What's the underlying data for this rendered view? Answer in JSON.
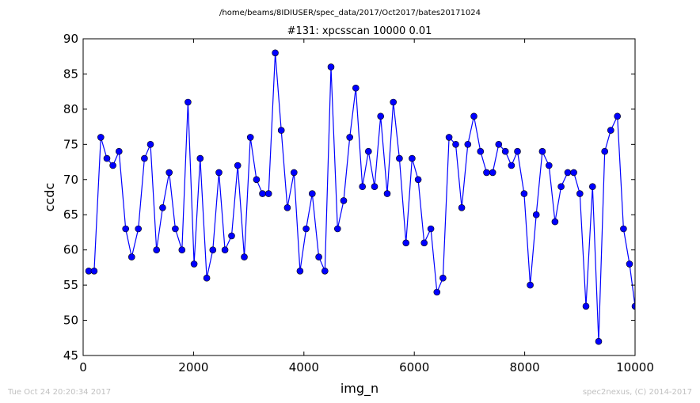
{
  "figure": {
    "suptitle": "/home/beams/8IDIUSER/spec_data/2017/Oct2017/bates20171024",
    "footer_left": "Tue Oct 24 20:20:34 2017",
    "footer_right": "spec2nexus, (C) 2014-2017"
  },
  "chart_data": {
    "type": "line",
    "title": "#131: xpcsscan 10000 0.01",
    "xlabel": "img_n",
    "ylabel": "ccdc",
    "xlim": [
      0,
      10000
    ],
    "ylim": [
      45,
      90
    ],
    "xticks": [
      0,
      2000,
      4000,
      6000,
      8000,
      10000
    ],
    "yticks": [
      45,
      50,
      55,
      60,
      65,
      70,
      75,
      80,
      85,
      90
    ],
    "grid": false,
    "line_color": "#0000ff",
    "marker": "circle",
    "series": [
      {
        "x": [
          100,
          200,
          320,
          430,
          540,
          650,
          770,
          880,
          1000,
          1110,
          1220,
          1330,
          1440,
          1560,
          1670,
          1790,
          1900,
          2010,
          2120,
          2240,
          2350,
          2460,
          2570,
          2690,
          2800,
          2920,
          3030,
          3140,
          3250,
          3360,
          3480,
          3590,
          3700,
          3820,
          3930,
          4040,
          4150,
          4270,
          4380,
          4490,
          4610,
          4720,
          4830,
          4940,
          5060,
          5170,
          5280,
          5390,
          5510,
          5620,
          5730,
          5850,
          5960,
          6070,
          6180,
          6300,
          6410,
          6520,
          6630,
          6750,
          6860,
          6970,
          7080,
          7200,
          7310,
          7420,
          7530,
          7650,
          7760,
          7870,
          7990,
          8100,
          8210,
          8320,
          8440,
          8550,
          8660,
          8780,
          8890,
          9000,
          9110,
          9230,
          9340,
          9450,
          9560,
          9680,
          9790,
          9900,
          10000
        ],
        "y": [
          57,
          57,
          76,
          73,
          72,
          74,
          63,
          59,
          63,
          73,
          75,
          60,
          66,
          71,
          63,
          60,
          81,
          58,
          73,
          56,
          60,
          71,
          60,
          62,
          72,
          59,
          76,
          70,
          68,
          68,
          88,
          77,
          66,
          71,
          57,
          63,
          68,
          59,
          57,
          86,
          63,
          67,
          76,
          83,
          69,
          74,
          69,
          79,
          68,
          81,
          73,
          61,
          73,
          70,
          61,
          63,
          54,
          56,
          76,
          75,
          66,
          75,
          79,
          74,
          71,
          71,
          75,
          74,
          72,
          74,
          68,
          55,
          65,
          74,
          72,
          64,
          69,
          71,
          71,
          68,
          52,
          69,
          47,
          74,
          77,
          79,
          63,
          58,
          52
        ]
      }
    ]
  }
}
